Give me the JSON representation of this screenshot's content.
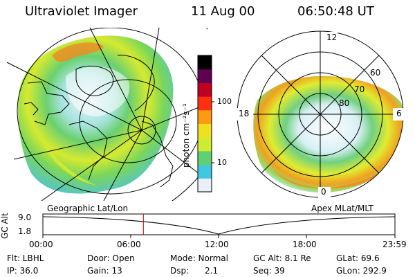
{
  "header": {
    "title": "Ultraviolet Imager",
    "date": "11 Aug 00",
    "time": "06:50:48 UT"
  },
  "left_panel": {
    "label": "Geographic Lat/Lon"
  },
  "right_panel": {
    "label": "Apex MLat/MLT",
    "mlt_labels": [
      "12",
      "18",
      "6",
      "0"
    ],
    "lat_labels": [
      "60",
      "70",
      "80"
    ]
  },
  "colorbar": {
    "unit_label": "photon cm⁻²s⁻¹",
    "tick_labels": [
      "100",
      "10"
    ],
    "colors": [
      "#e8f0f8",
      "#40c8e0",
      "#60d070",
      "#d0ec30",
      "#f0e020",
      "#ff9a10",
      "#ff3010",
      "#c00020",
      "#600050",
      "#000000"
    ]
  },
  "timeline": {
    "ylabel": "GC Alt",
    "y_ticks": [
      "9.0",
      "1.8"
    ],
    "x_ticks": [
      "00:00",
      "06:00",
      "12:00",
      "18:00",
      "23:59"
    ],
    "current_time_hours": 6.85,
    "marker_color": "#c00000"
  },
  "info": {
    "flt": "Flt: LBHL",
    "door": "Door: Open",
    "mode": "Mode: Normal",
    "gcalt": "GC Alt: 8.1 Re",
    "glat": "GLat:  69.6",
    "ip": "IP: 36.0",
    "gain": "Gain: 13",
    "dsp": "Dsp:      2.1",
    "seq": "Seq: 39",
    "glon": "GLon: 292.9"
  }
}
